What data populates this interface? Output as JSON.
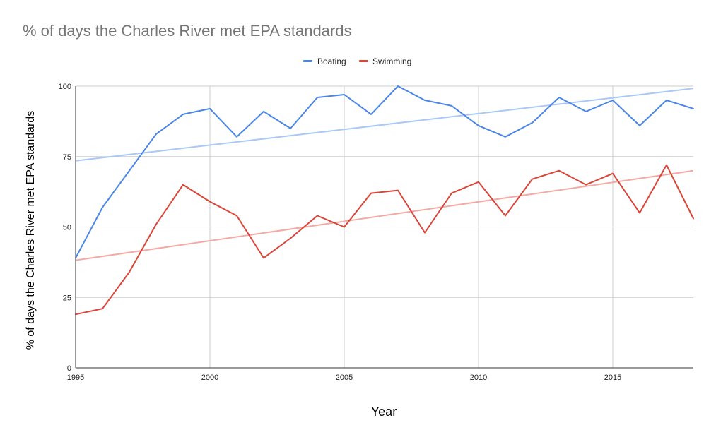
{
  "chart_data": {
    "type": "line",
    "title": "% of days the Charles River met EPA standards",
    "xlabel": "Year",
    "ylabel": "% of days the Charles River met EPA standards",
    "x": [
      1995,
      1996,
      1997,
      1998,
      1999,
      2000,
      2001,
      2002,
      2003,
      2004,
      2005,
      2006,
      2007,
      2008,
      2009,
      2010,
      2011,
      2012,
      2013,
      2014,
      2015,
      2016,
      2017,
      2018
    ],
    "xlim": [
      1995,
      2018
    ],
    "ylim": [
      0,
      100
    ],
    "x_ticks": [
      1995,
      2000,
      2005,
      2010,
      2015
    ],
    "y_ticks": [
      0,
      25,
      50,
      75,
      100
    ],
    "grid": true,
    "legend_position": "top-center",
    "series": [
      {
        "name": "Boating",
        "color": "#4a86e8",
        "trendline_color": "#aac8f5",
        "trendline": [
          73.5,
          99.2
        ],
        "values": [
          39,
          57,
          70,
          83,
          90,
          92,
          82,
          91,
          85,
          96,
          97,
          90,
          100,
          95,
          93,
          86,
          82,
          87,
          96,
          91,
          95,
          86,
          95,
          92
        ]
      },
      {
        "name": "Swimming",
        "color": "#db4437",
        "trendline_color": "#f4aaa4",
        "trendline": [
          38.2,
          70.0
        ],
        "values": [
          19,
          21,
          34,
          51,
          65,
          59,
          54,
          39,
          46,
          54,
          50,
          62,
          63,
          48,
          62,
          66,
          54,
          67,
          70,
          65,
          69,
          55,
          72,
          53
        ]
      }
    ]
  }
}
